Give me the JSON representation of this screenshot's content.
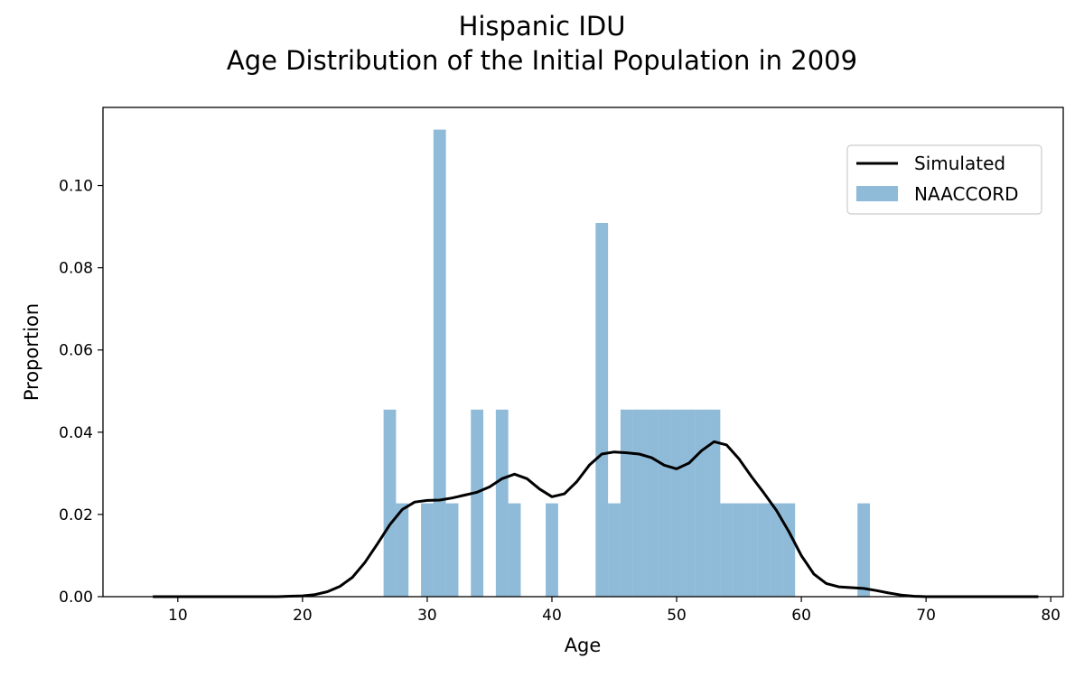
{
  "chart_data": {
    "type": "bar",
    "title_lines": [
      "Hispanic IDU",
      "Age Distribution of the Initial Population in 2009"
    ],
    "xlabel": "Age",
    "ylabel": "Proportion",
    "xlim": [
      4,
      81
    ],
    "ylim": [
      0,
      0.119
    ],
    "xticks": [
      10,
      20,
      30,
      40,
      50,
      60,
      70,
      80
    ],
    "yticks": [
      0.0,
      0.02,
      0.04,
      0.06,
      0.08,
      0.1
    ],
    "legend": {
      "placement": "top-right",
      "entries": [
        "Simulated",
        "NAACCORD"
      ]
    },
    "colors": {
      "bars": "#1f77b4",
      "line": "#000000"
    },
    "series": [
      {
        "name": "NAACCORD",
        "type": "histogram",
        "bin_width": 1,
        "bins": [
          {
            "x": 27,
            "value": 0.0455
          },
          {
            "x": 28,
            "value": 0.0227
          },
          {
            "x": 30,
            "value": 0.0227
          },
          {
            "x": 31,
            "value": 0.1136
          },
          {
            "x": 32,
            "value": 0.0227
          },
          {
            "x": 34,
            "value": 0.0455
          },
          {
            "x": 36,
            "value": 0.0455
          },
          {
            "x": 37,
            "value": 0.0227
          },
          {
            "x": 40,
            "value": 0.0227
          },
          {
            "x": 44,
            "value": 0.0909
          },
          {
            "x": 45,
            "value": 0.0227
          },
          {
            "x": 46,
            "value": 0.0455
          },
          {
            "x": 47,
            "value": 0.0455
          },
          {
            "x": 48,
            "value": 0.0455
          },
          {
            "x": 49,
            "value": 0.0455
          },
          {
            "x": 50,
            "value": 0.0455
          },
          {
            "x": 51,
            "value": 0.0455
          },
          {
            "x": 52,
            "value": 0.0455
          },
          {
            "x": 53,
            "value": 0.0455
          },
          {
            "x": 54,
            "value": 0.0227
          },
          {
            "x": 55,
            "value": 0.0227
          },
          {
            "x": 56,
            "value": 0.0227
          },
          {
            "x": 57,
            "value": 0.0227
          },
          {
            "x": 58,
            "value": 0.0227
          },
          {
            "x": 59,
            "value": 0.0227
          },
          {
            "x": 65,
            "value": 0.0227
          }
        ]
      },
      {
        "name": "Simulated",
        "type": "line",
        "points": [
          [
            8,
            0.0
          ],
          [
            10,
            0.0
          ],
          [
            12,
            0.0
          ],
          [
            14,
            0.0
          ],
          [
            16,
            0.0
          ],
          [
            18,
            0.0
          ],
          [
            19,
            0.0001
          ],
          [
            20,
            0.0002
          ],
          [
            21,
            0.0005
          ],
          [
            22,
            0.0012
          ],
          [
            23,
            0.0025
          ],
          [
            24,
            0.0047
          ],
          [
            25,
            0.0083
          ],
          [
            26,
            0.0128
          ],
          [
            27,
            0.0175
          ],
          [
            28,
            0.0212
          ],
          [
            29,
            0.023
          ],
          [
            30,
            0.0234
          ],
          [
            31,
            0.0235
          ],
          [
            32,
            0.024
          ],
          [
            33,
            0.0247
          ],
          [
            34,
            0.0254
          ],
          [
            35,
            0.0267
          ],
          [
            36,
            0.0287
          ],
          [
            37,
            0.0298
          ],
          [
            38,
            0.0287
          ],
          [
            39,
            0.0262
          ],
          [
            40,
            0.0243
          ],
          [
            41,
            0.025
          ],
          [
            42,
            0.028
          ],
          [
            43,
            0.032
          ],
          [
            44,
            0.0347
          ],
          [
            45,
            0.0352
          ],
          [
            46,
            0.035
          ],
          [
            47,
            0.0347
          ],
          [
            48,
            0.0338
          ],
          [
            49,
            0.032
          ],
          [
            50,
            0.0311
          ],
          [
            51,
            0.0325
          ],
          [
            52,
            0.0355
          ],
          [
            53,
            0.0377
          ],
          [
            54,
            0.0369
          ],
          [
            55,
            0.0335
          ],
          [
            56,
            0.0292
          ],
          [
            57,
            0.0252
          ],
          [
            58,
            0.021
          ],
          [
            59,
            0.0158
          ],
          [
            60,
            0.01
          ],
          [
            61,
            0.0055
          ],
          [
            62,
            0.0032
          ],
          [
            63,
            0.0024
          ],
          [
            64,
            0.0022
          ],
          [
            65,
            0.002
          ],
          [
            66,
            0.0015
          ],
          [
            67,
            0.0009
          ],
          [
            68,
            0.0004
          ],
          [
            69,
            0.0001
          ],
          [
            70,
            0.0
          ],
          [
            72,
            0.0
          ],
          [
            74,
            0.0
          ],
          [
            76,
            0.0
          ],
          [
            78,
            0.0
          ],
          [
            79,
            0.0
          ]
        ]
      }
    ]
  }
}
